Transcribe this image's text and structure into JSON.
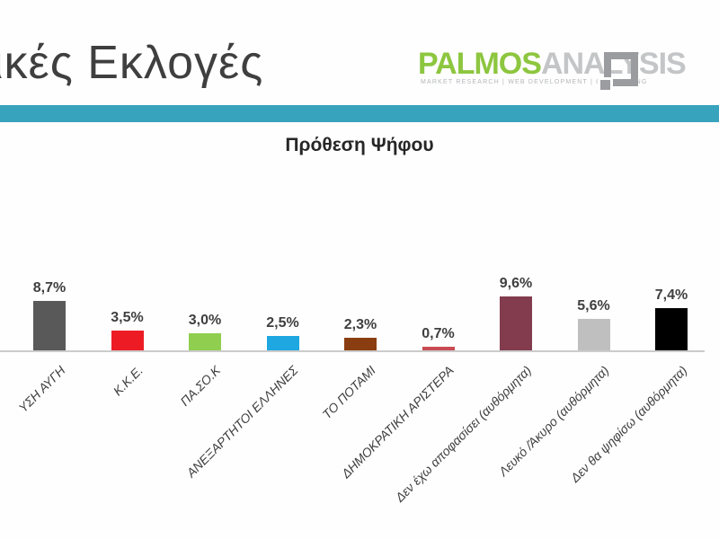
{
  "header": {
    "title": "ικές Εκλογές",
    "band_color": "#38a3bd",
    "logo": {
      "name": "palmos-analysis-logo",
      "word1": "PALMOS",
      "word2": "ANALYSIS",
      "word1_color": "#8dc63f",
      "word2_color": "#c3c5c7",
      "tagline": "MARKET RESEARCH | WEB DEVELOPMENT | CONSULTING"
    }
  },
  "chart_data": {
    "type": "bar",
    "title": "Πρόθεση Ψήφου",
    "categories": [
      "ΥΣΗ ΑΥΓΗ",
      "Κ.Κ.Ε.",
      "ΠΑ.ΣΟ.Κ",
      "ΑΝΕΞΑΡΤΗΤΟΙ ΕΛΛΗΝΕΣ",
      "ΤΟ ΠΟΤΑΜΙ",
      "ΔΗΜΟΚΡΑΤΙΚΗ ΑΡΙΣΤΕΡΑ",
      "Δεν έχω αποφασίσει (αυθόρμητα)",
      "Λευκό /Άκυρο (αυθόρμητα)",
      "Δεν θα ψηφίσω (αυθόρμητα)"
    ],
    "values": [
      8.7,
      3.5,
      3.0,
      2.5,
      2.3,
      0.7,
      9.6,
      5.6,
      7.4
    ],
    "value_labels": [
      "8,7%",
      "3,5%",
      "3,0%",
      "2,5%",
      "2,3%",
      "0,7%",
      "9,6%",
      "5,6%",
      "7,4%"
    ],
    "bar_colors": [
      "#595959",
      "#ed1c24",
      "#8fce4e",
      "#1ea7e1",
      "#8a3d10",
      "#c94a52",
      "#823c4e",
      "#bfbfbf",
      "#000000"
    ],
    "xlabel": "",
    "ylabel": "",
    "ylim": [
      0,
      10.5
    ],
    "grid": false,
    "legend": "none",
    "value_label_format": "comma-decimal-percent",
    "category_label_rotation_deg": 45
  }
}
